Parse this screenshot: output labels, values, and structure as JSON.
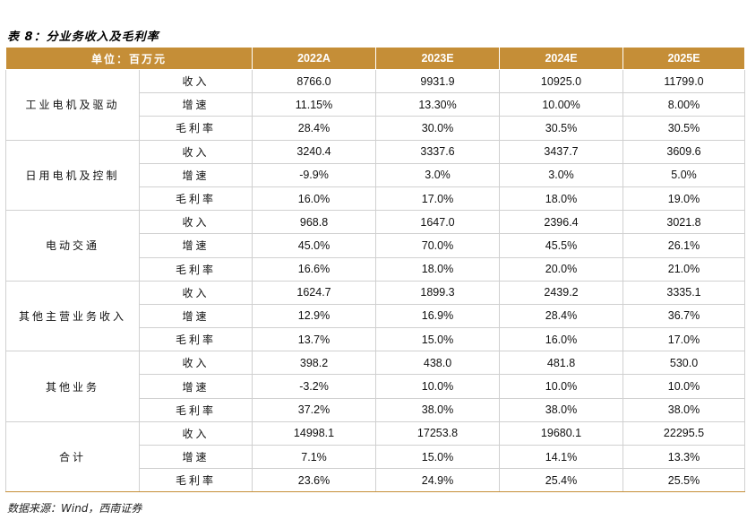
{
  "title": "表 8：分业务收入及毛利率",
  "header": {
    "unit": "单位：百万元",
    "years": [
      "2022A",
      "2023E",
      "2024E",
      "2025E"
    ]
  },
  "segments": [
    {
      "name": "工业电机及驱动",
      "rows": [
        {
          "metric": "收入",
          "values": [
            "8766.0",
            "9931.9",
            "10925.0",
            "11799.0"
          ]
        },
        {
          "metric": "增速",
          "values": [
            "11.15%",
            "13.30%",
            "10.00%",
            "8.00%"
          ]
        },
        {
          "metric": "毛利率",
          "values": [
            "28.4%",
            "30.0%",
            "30.5%",
            "30.5%"
          ]
        }
      ]
    },
    {
      "name": "日用电机及控制",
      "rows": [
        {
          "metric": "收入",
          "values": [
            "3240.4",
            "3337.6",
            "3437.7",
            "3609.6"
          ]
        },
        {
          "metric": "增速",
          "values": [
            "-9.9%",
            "3.0%",
            "3.0%",
            "5.0%"
          ]
        },
        {
          "metric": "毛利率",
          "values": [
            "16.0%",
            "17.0%",
            "18.0%",
            "19.0%"
          ]
        }
      ]
    },
    {
      "name": "电动交通",
      "rows": [
        {
          "metric": "收入",
          "values": [
            "968.8",
            "1647.0",
            "2396.4",
            "3021.8"
          ]
        },
        {
          "metric": "增速",
          "values": [
            "45.0%",
            "70.0%",
            "45.5%",
            "26.1%"
          ]
        },
        {
          "metric": "毛利率",
          "values": [
            "16.6%",
            "18.0%",
            "20.0%",
            "21.0%"
          ]
        }
      ]
    },
    {
      "name": "其他主营业务收入",
      "rows": [
        {
          "metric": "收入",
          "values": [
            "1624.7",
            "1899.3",
            "2439.2",
            "3335.1"
          ]
        },
        {
          "metric": "增速",
          "values": [
            "12.9%",
            "16.9%",
            "28.4%",
            "36.7%"
          ]
        },
        {
          "metric": "毛利率",
          "values": [
            "13.7%",
            "15.0%",
            "16.0%",
            "17.0%"
          ]
        }
      ]
    },
    {
      "name": "其他业务",
      "rows": [
        {
          "metric": "收入",
          "values": [
            "398.2",
            "438.0",
            "481.8",
            "530.0"
          ]
        },
        {
          "metric": "增速",
          "values": [
            "-3.2%",
            "10.0%",
            "10.0%",
            "10.0%"
          ]
        },
        {
          "metric": "毛利率",
          "values": [
            "37.2%",
            "38.0%",
            "38.0%",
            "38.0%"
          ]
        }
      ]
    },
    {
      "name": "合计",
      "rows": [
        {
          "metric": "收入",
          "values": [
            "14998.1",
            "17253.8",
            "19680.1",
            "22295.5"
          ]
        },
        {
          "metric": "增速",
          "values": [
            "7.1%",
            "15.0%",
            "14.1%",
            "13.3%"
          ]
        },
        {
          "metric": "毛利率",
          "values": [
            "23.6%",
            "24.9%",
            "25.4%",
            "25.5%"
          ]
        }
      ]
    }
  ],
  "source": "数据来源：Wind，西南证券",
  "colors": {
    "header_bg": "#c58e37",
    "header_text": "#ffffff",
    "grid": "#d0d0d0"
  }
}
